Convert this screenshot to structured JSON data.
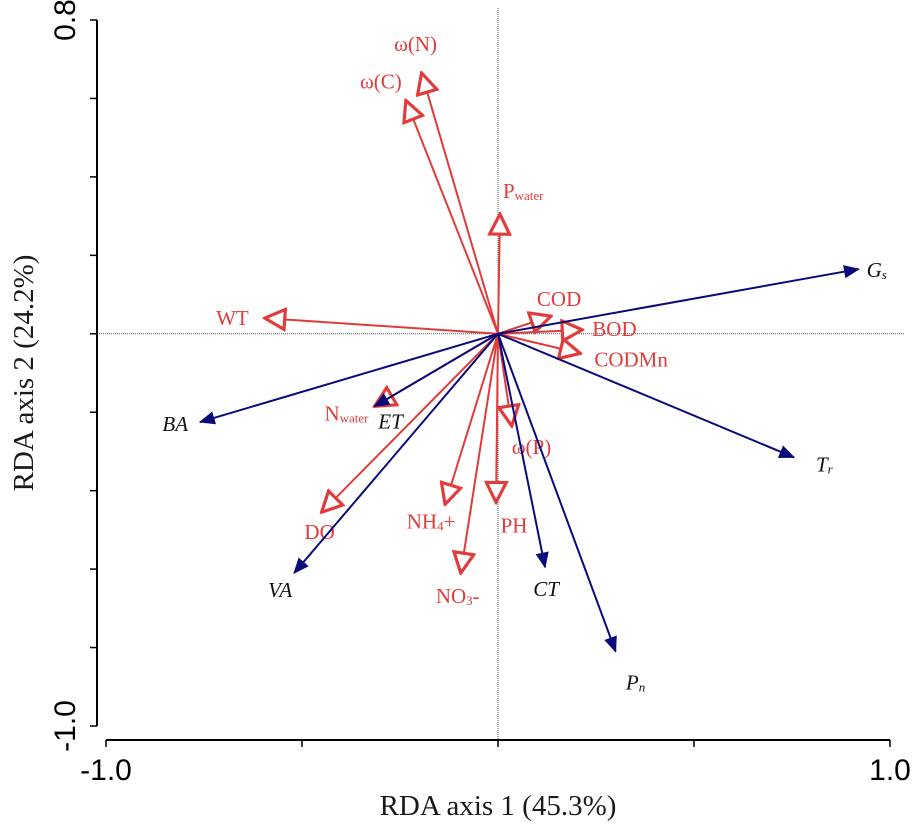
{
  "chart_data": {
    "type": "biplot",
    "xlabel": "RDA axis 1 (45.3%)",
    "ylabel": "RDA axis 2 (24.2%)",
    "xlim": [
      -1.0,
      1.0
    ],
    "ylim": [
      -1.0,
      0.8
    ],
    "x_tick_labels": [
      {
        "value": -1.0,
        "label": "-1.0"
      },
      {
        "value": 1.0,
        "label": "1.0"
      }
    ],
    "y_tick_labels": [
      {
        "value": 0.8,
        "label": "0.8"
      },
      {
        "value": -1.0,
        "label": "-1.0"
      }
    ],
    "x_minor_ticks": [
      -1.0,
      -0.5,
      0.0,
      0.5,
      1.0
    ],
    "y_minor_ticks": [
      0.8,
      0.6,
      0.4,
      0.2,
      0.0,
      -0.2,
      -0.4,
      -0.6,
      -0.8,
      -1.0
    ],
    "colors": {
      "environmental": "#e03c3c",
      "response": "#0a0a7a",
      "axes": "#000000",
      "zero_lines": "#555555"
    },
    "series": [
      {
        "name": "environmental",
        "arrow_style": "open",
        "vectors": [
          {
            "id": "omega-n",
            "label": "ω(N)",
            "x": -0.195,
            "y": 0.665
          },
          {
            "id": "omega-c",
            "label": "ω(C)",
            "x": -0.235,
            "y": 0.595
          },
          {
            "id": "p-water",
            "label": "P",
            "label_sub": "water",
            "x": 0.005,
            "y": 0.305
          },
          {
            "id": "cod",
            "label": "COD",
            "x": 0.135,
            "y": 0.045
          },
          {
            "id": "bod",
            "label": "BOD",
            "x": 0.215,
            "y": 0.01
          },
          {
            "id": "codmn",
            "label": "CODMn",
            "x": 0.21,
            "y": -0.05
          },
          {
            "id": "wt",
            "label": "WT",
            "x": -0.595,
            "y": 0.04
          },
          {
            "id": "n-water",
            "label": "N",
            "label_sub": "water",
            "x": -0.315,
            "y": -0.185
          },
          {
            "id": "omega-p",
            "label": "ω(P)",
            "x": 0.035,
            "y": -0.235
          },
          {
            "id": "do",
            "label": "DO",
            "x": -0.45,
            "y": -0.455
          },
          {
            "id": "nh4",
            "label": "NH",
            "label_sub": "4",
            "label_suffix": "+",
            "x": -0.135,
            "y": -0.435
          },
          {
            "id": "ph",
            "label": "PH",
            "x": -0.005,
            "y": -0.43
          },
          {
            "id": "no3",
            "label": "NO",
            "label_sub": "3",
            "label_suffix": "-",
            "x": -0.095,
            "y": -0.61
          }
        ]
      },
      {
        "name": "response",
        "arrow_style": "filled",
        "vectors": [
          {
            "id": "gs",
            "label": "G",
            "label_sub": "s",
            "x": 0.92,
            "y": 0.165
          },
          {
            "id": "tr",
            "label": "T",
            "label_sub": "r",
            "x": 0.755,
            "y": -0.315
          },
          {
            "id": "pn",
            "label": "P",
            "label_sub": "n",
            "x": 0.3,
            "y": -0.81
          },
          {
            "id": "ct",
            "label": "CT",
            "x": 0.12,
            "y": -0.595
          },
          {
            "id": "va",
            "label": "VA",
            "x": -0.52,
            "y": -0.61
          },
          {
            "id": "ba",
            "label": "BA",
            "x": -0.76,
            "y": -0.225
          },
          {
            "id": "et",
            "label": "ET",
            "x": -0.315,
            "y": -0.185
          }
        ]
      }
    ]
  }
}
